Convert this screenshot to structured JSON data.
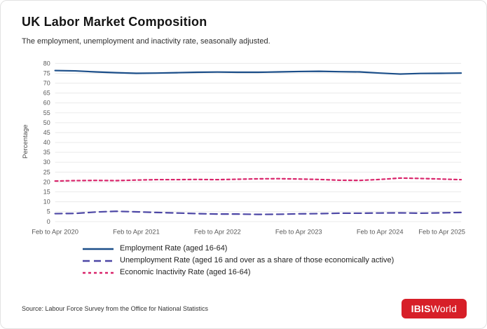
{
  "header": {
    "title": "UK Labor Market Composition",
    "subtitle": "The employment, unemployment and inactivity rate, seasonally adjusted."
  },
  "footer": {
    "source": "Source: Labour Force Survey from the Office for National Statistics",
    "logo": {
      "bold": "IBIS",
      "regular": "World",
      "bg_color": "#d71f28"
    }
  },
  "chart_data": {
    "type": "line",
    "title": "UK Labor Market Composition",
    "subtitle": "The employment, unemployment and inactivity rate, seasonally adjusted.",
    "ylabel": "Percentage",
    "ylim": [
      0,
      80
    ],
    "ytick_step": 5,
    "grid": "horizontal",
    "gridline_color": "#eaeaea",
    "legend_position": "bottom-left",
    "x_tick_labels": [
      "Feb to Apr 2020",
      "Feb to Apr 2021",
      "Feb to Apr 2022",
      "Feb to Apr 2023",
      "Feb to Apr 2024",
      "Feb to Apr 2025"
    ],
    "series": [
      {
        "key": "employment-rate",
        "name": "Employment Rate (aged 16-64)",
        "color": "#1b4e89",
        "dash": "solid",
        "values": [
          76.4,
          76.2,
          75.7,
          75.3,
          75.0,
          75.1,
          75.3,
          75.5,
          75.6,
          75.5,
          75.5,
          75.7,
          75.9,
          76.0,
          75.8,
          75.7,
          75.1,
          74.6,
          74.9,
          75.0,
          75.1
        ]
      },
      {
        "key": "unemployment-rate",
        "name": "Unemployment Rate (aged 16 and over as a share of those economically active)",
        "color": "#4c46a5",
        "dash": "10 6",
        "values": [
          4.0,
          4.1,
          4.8,
          5.2,
          4.9,
          4.6,
          4.3,
          4.0,
          3.8,
          3.8,
          3.6,
          3.7,
          3.9,
          4.0,
          4.2,
          4.2,
          4.3,
          4.4,
          4.2,
          4.4,
          4.6
        ]
      },
      {
        "key": "economic-inactivity-rate",
        "name": "Economic Inactivity Rate (aged 16-64)",
        "color": "#d9256b",
        "dash": "4 4",
        "values": [
          20.5,
          20.7,
          20.8,
          20.7,
          21.0,
          21.2,
          21.2,
          21.3,
          21.2,
          21.4,
          21.6,
          21.7,
          21.5,
          21.3,
          20.9,
          20.8,
          21.3,
          22.0,
          21.8,
          21.5,
          21.2
        ]
      }
    ]
  }
}
